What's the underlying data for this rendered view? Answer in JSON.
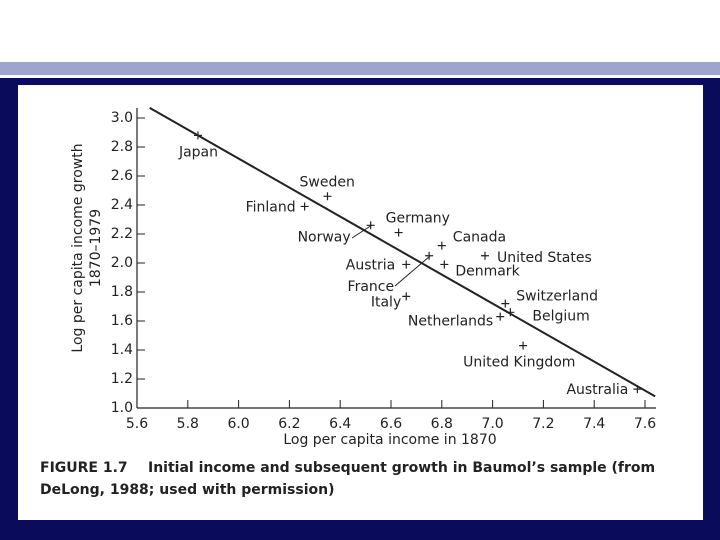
{
  "chart_data": {
    "type": "scatter",
    "y_label": "Log per capita income growth",
    "y_label_period": "1870–1979",
    "x_label": "Log per capita income in 1870",
    "caption_number": "FIGURE 1.7",
    "caption_lines": [
      "Initial income and subsequent growth in Baumol’s sample (from",
      "DeLong, 1988; used with permission)"
    ],
    "xlim": [
      5.6,
      7.6
    ],
    "ylim": [
      1.0,
      3.0
    ],
    "xticks": [
      5.6,
      5.8,
      {
        "value": 6.0,
        "label": "6.0"
      },
      6.2,
      6.4,
      6.6,
      6.8,
      {
        "value": 7.0,
        "label": "7.0"
      },
      7.2,
      7.4,
      7.6
    ],
    "yticks": [
      {
        "value": 1.0,
        "label": "1.0"
      },
      1.2,
      1.4,
      1.6,
      1.8,
      {
        "value": 2.0,
        "label": "2.0"
      },
      2.2,
      2.4,
      2.6,
      2.8,
      {
        "value": 3.0,
        "label": "3.0"
      }
    ],
    "color": "#222222",
    "labels": [
      "Japan",
      "Sweden",
      "Finland",
      "Norway",
      "Germany",
      "Canada",
      "United States",
      "Denmark",
      "Austria",
      "France",
      "Italy",
      "Netherlands",
      "Switzerland",
      "Belgium",
      "United Kingdom",
      "Australia"
    ],
    "x": [
      5.84,
      6.35,
      6.26,
      6.52,
      6.63,
      6.8,
      6.97,
      6.81,
      6.66,
      6.75,
      6.66,
      7.03,
      7.05,
      7.07,
      7.12,
      7.57
    ],
    "values": [
      2.88,
      2.46,
      2.39,
      2.26,
      2.21,
      2.12,
      2.05,
      1.99,
      1.99,
      2.05,
      1.77,
      1.63,
      1.72,
      1.66,
      1.43,
      1.13
    ],
    "fit_line": {
      "x": [
        5.65,
        7.64
      ],
      "values": [
        3.07,
        1.08
      ]
    }
  }
}
